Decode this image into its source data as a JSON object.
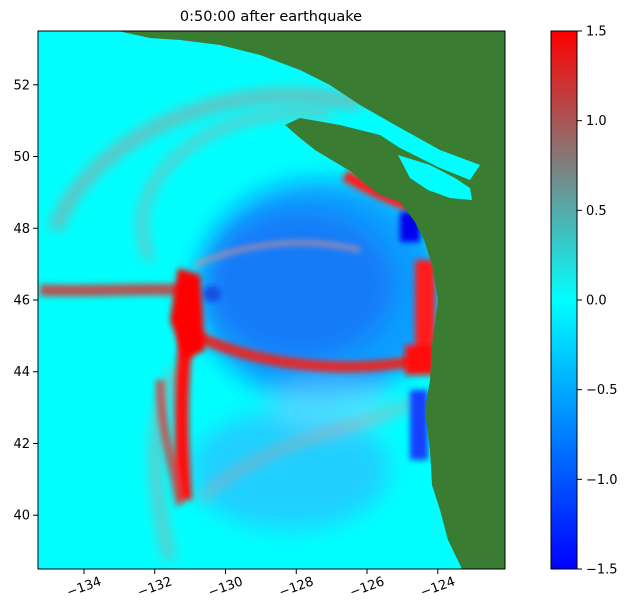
{
  "title": "0:50:00 after earthquake",
  "chart_data": {
    "type": "heatmap",
    "title": "0:50:00 after earthquake",
    "xlabel": "",
    "ylabel": "",
    "xlim": [
      -135.3,
      -122.1
    ],
    "ylim": [
      38.5,
      53.5
    ],
    "xticks": [
      -134,
      -132,
      -130,
      -128,
      -126,
      -124
    ],
    "xtick_labels": [
      "−134",
      "−132",
      "−130",
      "−128",
      "−126",
      "−124"
    ],
    "yticks": [
      40,
      42,
      44,
      46,
      48,
      50,
      52
    ],
    "ytick_labels": [
      "40",
      "42",
      "44",
      "46",
      "48",
      "50",
      "52"
    ],
    "colorbar": {
      "range": [
        -1.5,
        1.5
      ],
      "ticks": [
        -1.5,
        -1.0,
        -0.5,
        0.0,
        0.5,
        1.0,
        1.5
      ],
      "tick_labels": [
        "−1.5",
        "−1.0",
        "−0.5",
        "0.0",
        "0.5",
        "1.0",
        "1.5"
      ],
      "colors": [
        "#0000ff",
        "#00ffff",
        "#ff0000"
      ]
    },
    "land_color": "#3a7d32",
    "ocean_baseline_color": "#00ffff",
    "grid": false
  }
}
